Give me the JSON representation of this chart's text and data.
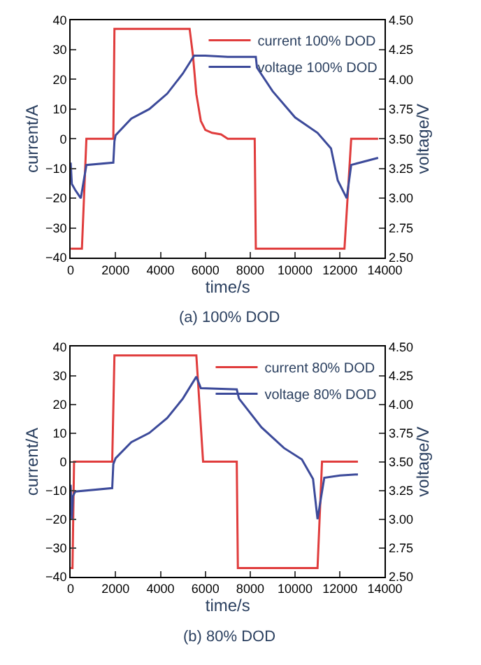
{
  "chart_data": [
    {
      "type": "line",
      "title": "(a) 100% DOD",
      "xlabel": "time/s",
      "ylabel": "current/A",
      "y2label": "voltage/V",
      "xlim": [
        0,
        14000
      ],
      "xticks": [
        0,
        2000,
        4000,
        6000,
        8000,
        10000,
        12000,
        14000
      ],
      "ylim": [
        -40,
        40
      ],
      "yticks": [
        -40,
        -30,
        -20,
        -10,
        0,
        10,
        20,
        30,
        40
      ],
      "y2lim": [
        2.5,
        4.5
      ],
      "y2ticks": [
        {
          "value": 2.5,
          "label": "2.50"
        },
        {
          "value": 2.75,
          "label": "2.75"
        },
        {
          "value": 3.0,
          "label": "3.00"
        },
        {
          "value": 3.25,
          "label": "3.25"
        },
        {
          "value": 3.5,
          "label": "3.50"
        },
        {
          "value": 3.75,
          "label": "3.75"
        },
        {
          "value": 4.0,
          "label": "4.00"
        },
        {
          "value": 4.25,
          "label": "4.25"
        },
        {
          "value": 4.5,
          "label": "4.50"
        }
      ],
      "legend": "top right",
      "marker": "none",
      "line_style": "solid",
      "series": [
        {
          "name": "current 100% DOD",
          "color": "#e03c3c",
          "x": [
            0,
            500,
            700,
            1900,
            1950,
            5300,
            5450,
            5600,
            5800,
            6000,
            6300,
            6700,
            7000,
            8200,
            8250,
            12200,
            12500,
            13700
          ],
          "values": [
            -37,
            -37,
            0,
            0,
            37,
            37,
            28,
            15,
            6,
            3,
            2,
            1.5,
            0,
            0,
            -37,
            -37,
            0,
            0
          ]
        },
        {
          "name": "voltage 100% DOD",
          "color": "#3c4a9a",
          "axis": "y2",
          "x": [
            0,
            50,
            200,
            450,
            700,
            1900,
            1950,
            2000,
            2700,
            3500,
            4300,
            5000,
            5500,
            6000,
            7000,
            8250,
            8300,
            9000,
            10000,
            11000,
            11600,
            11900,
            12300,
            12500,
            13700
          ],
          "values": [
            3.3,
            3.12,
            3.07,
            3.0,
            3.28,
            3.3,
            3.48,
            3.53,
            3.67,
            3.75,
            3.88,
            4.05,
            4.2,
            4.2,
            4.19,
            4.19,
            4.1,
            3.9,
            3.68,
            3.55,
            3.42,
            3.15,
            3.0,
            3.28,
            3.34
          ]
        }
      ]
    },
    {
      "type": "line",
      "title": "(b) 80% DOD",
      "xlabel": "time/s",
      "ylabel": "current/A",
      "y2label": "voltage/V",
      "xlim": [
        0,
        14000
      ],
      "xticks": [
        0,
        2000,
        4000,
        6000,
        8000,
        10000,
        12000,
        14000
      ],
      "ylim": [
        -40,
        40
      ],
      "yticks": [
        -40,
        -30,
        -20,
        -10,
        0,
        10,
        20,
        30,
        40
      ],
      "y2lim": [
        2.5,
        4.5
      ],
      "y2ticks": [
        {
          "value": 2.5,
          "label": "2.50"
        },
        {
          "value": 2.75,
          "label": "2.75"
        },
        {
          "value": 3.0,
          "label": "3.00"
        },
        {
          "value": 3.25,
          "label": "3.25"
        },
        {
          "value": 3.5,
          "label": "3.50"
        },
        {
          "value": 3.75,
          "label": "3.75"
        },
        {
          "value": 4.0,
          "label": "4.00"
        },
        {
          "value": 4.25,
          "label": "4.25"
        },
        {
          "value": 4.5,
          "label": "4.50"
        }
      ],
      "legend": "top right",
      "marker": "none",
      "line_style": "solid",
      "series": [
        {
          "name": "current 80% DOD",
          "color": "#e03c3c",
          "x": [
            0,
            80,
            150,
            1850,
            1950,
            5600,
            5900,
            7400,
            7450,
            11000,
            11200,
            12800
          ],
          "values": [
            -37,
            -37,
            0,
            0,
            37,
            37,
            0,
            0,
            -37,
            -37,
            0,
            0
          ]
        },
        {
          "name": "voltage 80% DOD",
          "color": "#3c4a9a",
          "axis": "y2",
          "x": [
            0,
            50,
            100,
            200,
            1850,
            1900,
            2000,
            2700,
            3500,
            4300,
            5000,
            5600,
            5800,
            7400,
            7500,
            8500,
            9500,
            10300,
            10800,
            11000,
            11300,
            12000,
            12800
          ],
          "values": [
            3.3,
            3.0,
            3.2,
            3.24,
            3.27,
            3.48,
            3.53,
            3.67,
            3.75,
            3.88,
            4.05,
            4.24,
            4.14,
            4.13,
            4.05,
            3.8,
            3.62,
            3.52,
            3.35,
            3.0,
            3.36,
            3.38,
            3.39
          ]
        }
      ]
    }
  ]
}
